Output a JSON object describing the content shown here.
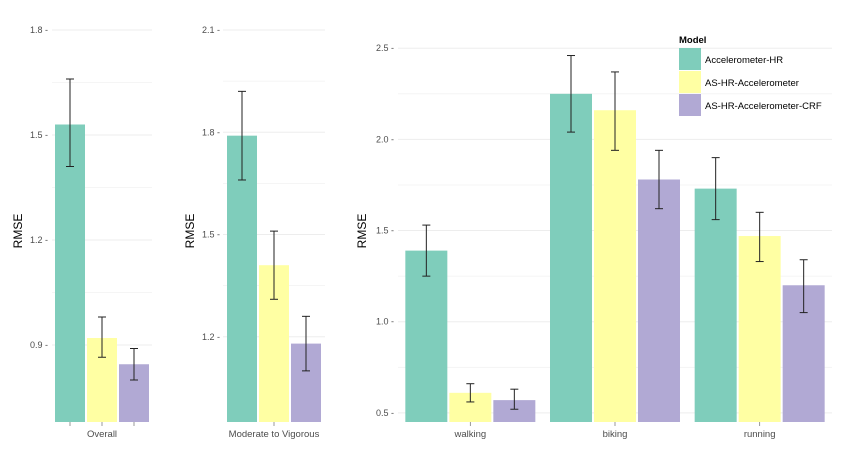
{
  "legend": {
    "title": "Model",
    "items": [
      {
        "label": "Accelerometer-HR",
        "color": "#7fcdbb"
      },
      {
        "label": "AS-HR-Accelerometer",
        "color": "#ffffa3"
      },
      {
        "label": "AS-HR-Accelerometer-CRF",
        "color": "#b1a9d4"
      }
    ]
  },
  "chart_data": [
    {
      "type": "bar",
      "ylabel": "RMSE",
      "xlabel": "",
      "ylim": [
        0.68,
        1.8
      ],
      "yticks": [
        0.9,
        1.2,
        1.5,
        1.8
      ],
      "ytick_labels": [
        "0.9 -",
        "1.2 -",
        "1.5 -",
        "1.8 -"
      ],
      "categories": [
        "Overall"
      ],
      "series": [
        {
          "name": "Accelerometer-HR",
          "values": [
            1.53
          ],
          "err_low": [
            1.41
          ],
          "err_high": [
            1.66
          ]
        },
        {
          "name": "AS-HR-Accelerometer",
          "values": [
            0.92
          ],
          "err_low": [
            0.865
          ],
          "err_high": [
            0.98
          ]
        },
        {
          "name": "AS-HR-Accelerometer-CRF",
          "values": [
            0.845
          ],
          "err_low": [
            0.8
          ],
          "err_high": [
            0.89
          ]
        }
      ],
      "error_bars": true,
      "grid": true
    },
    {
      "type": "bar",
      "ylabel": "RMSE",
      "xlabel": "",
      "ylim": [
        0.95,
        2.1
      ],
      "yticks": [
        1.2,
        1.5,
        1.8,
        2.1
      ],
      "ytick_labels": [
        "1.2 -",
        "1.5 -",
        "1.8 -",
        "2.1 -"
      ],
      "categories": [
        "Moderate to Vigorous"
      ],
      "series": [
        {
          "name": "Accelerometer-HR",
          "values": [
            1.79
          ],
          "err_low": [
            1.66
          ],
          "err_high": [
            1.92
          ]
        },
        {
          "name": "AS-HR-Accelerometer",
          "values": [
            1.41
          ],
          "err_low": [
            1.31
          ],
          "err_high": [
            1.51
          ]
        },
        {
          "name": "AS-HR-Accelerometer-CRF",
          "values": [
            1.18
          ],
          "err_low": [
            1.1
          ],
          "err_high": [
            1.26
          ]
        }
      ],
      "error_bars": true,
      "grid": true
    },
    {
      "type": "bar",
      "ylabel": "RMSE",
      "xlabel": "",
      "ylim": [
        0.45,
        2.6
      ],
      "yticks": [
        0.5,
        1.0,
        1.5,
        2.0,
        2.5
      ],
      "ytick_labels": [
        "0.5 -",
        "1.0 -",
        "1.5 -",
        "2.0 -",
        "2.5 -"
      ],
      "categories": [
        "walking",
        "biking",
        "running"
      ],
      "series": [
        {
          "name": "Accelerometer-HR",
          "values": [
            1.39,
            2.25,
            1.73
          ],
          "err_low": [
            1.25,
            2.04,
            1.56
          ],
          "err_high": [
            1.53,
            2.46,
            1.9
          ]
        },
        {
          "name": "AS-HR-Accelerometer",
          "values": [
            0.61,
            2.16,
            1.47
          ],
          "err_low": [
            0.56,
            1.94,
            1.33
          ],
          "err_high": [
            0.66,
            2.37,
            1.6
          ]
        },
        {
          "name": "AS-HR-Accelerometer-CRF",
          "values": [
            0.57,
            1.78,
            1.2
          ],
          "err_low": [
            0.52,
            1.62,
            1.05
          ],
          "err_high": [
            0.63,
            1.94,
            1.34
          ]
        }
      ],
      "error_bars": true,
      "grid": true
    }
  ]
}
